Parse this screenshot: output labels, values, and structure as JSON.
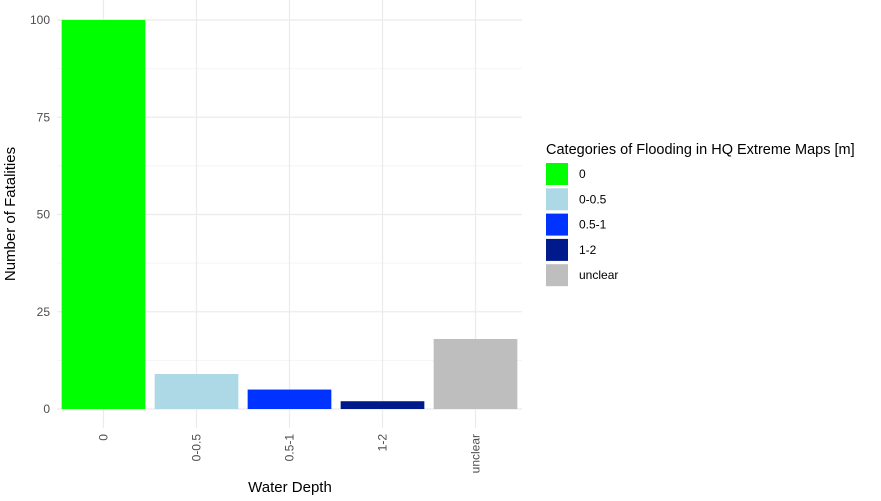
{
  "chart_data": {
    "type": "bar",
    "title": "",
    "xlabel": "Water Depth",
    "ylabel": "Number of Fatalities",
    "categories": [
      "0",
      "0-0.5",
      "0.5-1",
      "1-2",
      "unclear"
    ],
    "values": [
      100,
      9,
      5,
      2,
      18
    ],
    "colors": [
      "#00ff00",
      "#add8e6",
      "#0033ff",
      "#001a8c",
      "#bebebe"
    ],
    "ylim": [
      0,
      100
    ],
    "yticks": [
      0,
      25,
      50,
      75,
      100
    ],
    "grid": true,
    "legend": {
      "title": "Categories of Flooding in HQ Extreme Maps [m]",
      "placement": "right",
      "entries": [
        "0",
        "0-0.5",
        "0.5-1",
        "1-2",
        "unclear"
      ]
    }
  }
}
